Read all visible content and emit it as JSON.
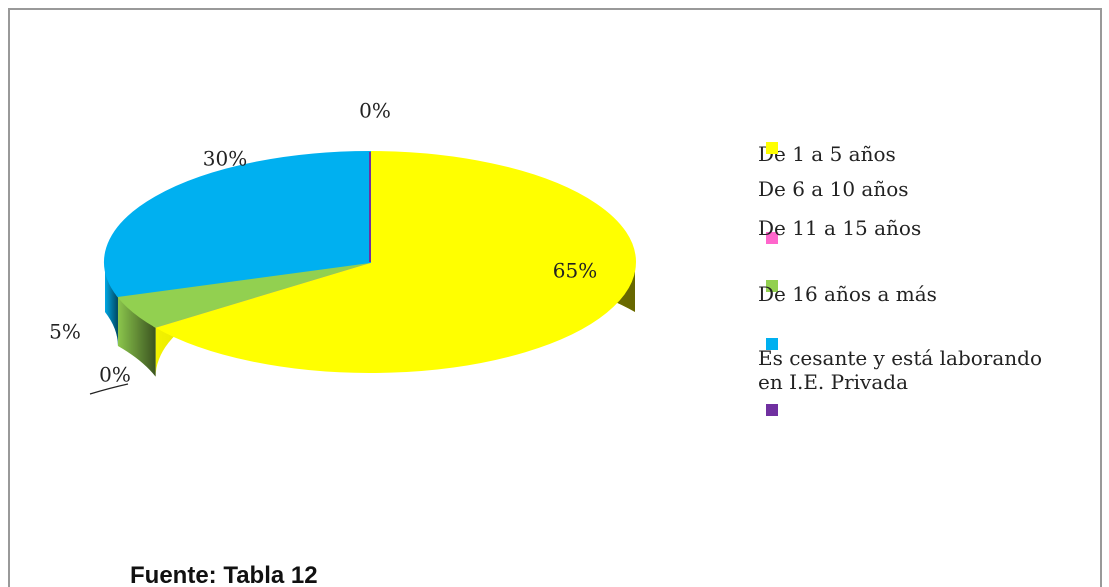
{
  "chart_data": {
    "type": "pie",
    "categories": [
      "De 1 a 5 años",
      "De 6 a 10 años",
      "De 11 a 15 años",
      "De 16 años a más",
      "Es cesante y está laborando en I.E. Privada"
    ],
    "values": [
      65,
      0,
      5,
      30,
      0
    ],
    "value_labels": [
      "65%",
      "0%",
      "5%",
      "30%",
      "0%"
    ],
    "colors": [
      "#ffff00",
      "#ff66cc",
      "#92d050",
      "#00b0f0",
      "#7030a0"
    ],
    "legend": "right",
    "footer": "Fuente: Tabla 12"
  }
}
